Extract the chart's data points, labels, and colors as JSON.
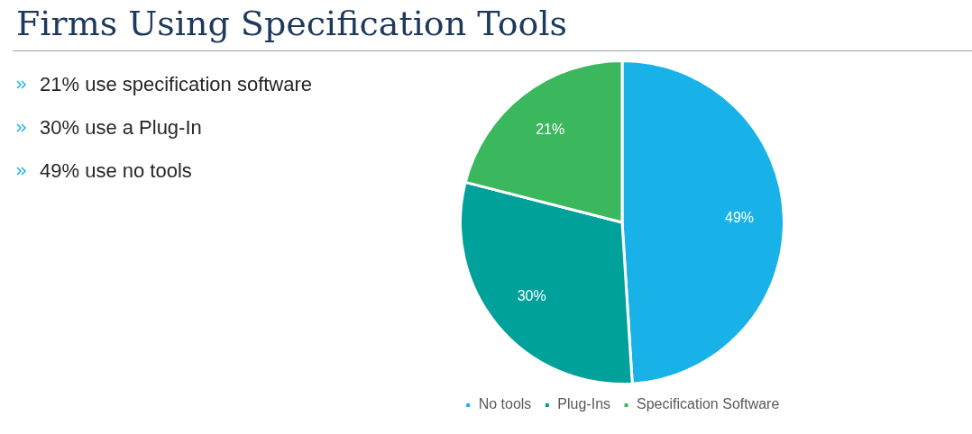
{
  "chart_data": {
    "type": "pie",
    "title": "Firms Using Specification Tools",
    "categories": [
      "No tools",
      "Plug-Ins",
      "Specification Software"
    ],
    "values": [
      49,
      30,
      21
    ],
    "colors": [
      "#18b2e8",
      "#00a19b",
      "#3bb85e"
    ],
    "value_labels": [
      "49%",
      "30%",
      "21%"
    ],
    "legend": "bottom",
    "annotations": [
      "21% use specification software",
      "30% use a Plug-In",
      "49% use no tools"
    ]
  }
}
